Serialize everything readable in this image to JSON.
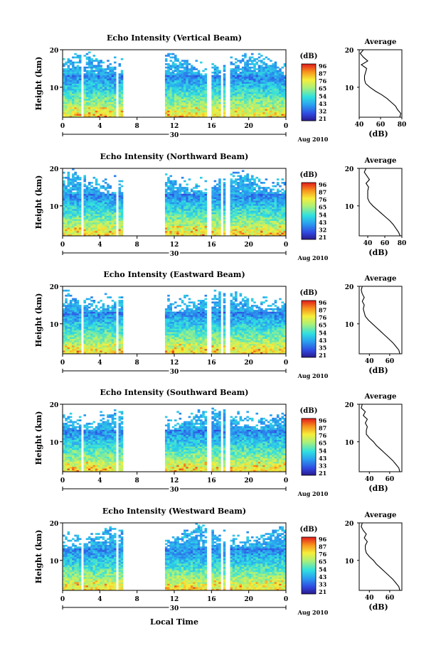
{
  "figure": {
    "x_axis_title": "Local Time",
    "date_label": "30",
    "date_suffix": "Aug 2010"
  },
  "chart_data": [
    {
      "type": "heatmap",
      "title": "Echo Intensity (Vertical Beam)",
      "ylabel": "Height (km)",
      "xlim": [
        0,
        24
      ],
      "ylim": [
        2,
        20
      ],
      "x_ticks": [
        "0",
        "4",
        "8",
        "12",
        "16",
        "20",
        "0"
      ],
      "y_ticks": [
        "20",
        "10"
      ],
      "colorbar": {
        "label": "(dB)",
        "ticks": [
          "96",
          "87",
          "76",
          "65",
          "54",
          "43",
          "32",
          "21"
        ],
        "range": [
          21,
          96
        ]
      },
      "data_gaps_hours": [
        [
          1.9,
          2.2
        ],
        [
          5.7,
          6.1
        ],
        [
          6.4,
          10.9
        ],
        [
          15.6,
          16.1
        ],
        [
          17.0,
          17.3
        ],
        [
          17.6,
          17.9
        ]
      ],
      "average_profile": {
        "title": "Average",
        "xlabel": "(dB)",
        "x_ticks": [
          "40",
          "60",
          "80"
        ],
        "xlim": [
          40,
          80
        ],
        "height_km": [
          2,
          3,
          4,
          5,
          6,
          7,
          8,
          9,
          10,
          11,
          12,
          13,
          14,
          15,
          16,
          17,
          18,
          19,
          20
        ],
        "db": [
          78,
          79,
          76,
          74,
          70,
          66,
          61,
          55,
          50,
          46,
          45,
          45,
          46,
          47,
          42,
          48,
          44,
          41,
          44
        ]
      }
    },
    {
      "type": "heatmap",
      "title": "Echo Intensity (Northward Beam)",
      "ylabel": "Height (km)",
      "xlim": [
        0,
        24
      ],
      "ylim": [
        2,
        20
      ],
      "x_ticks": [
        "0",
        "4",
        "8",
        "12",
        "16",
        "20",
        "0"
      ],
      "y_ticks": [
        "20",
        "10"
      ],
      "colorbar": {
        "label": "(dB)",
        "ticks": [
          "96",
          "87",
          "76",
          "65",
          "54",
          "43",
          "32",
          "21"
        ],
        "range": [
          21,
          96
        ]
      },
      "data_gaps_hours": [
        [
          1.9,
          2.2
        ],
        [
          5.7,
          6.1
        ],
        [
          6.4,
          10.9
        ],
        [
          15.6,
          16.1
        ],
        [
          17.0,
          17.3
        ],
        [
          17.6,
          17.9
        ]
      ],
      "average_profile": {
        "title": "Average",
        "xlabel": "(dB)",
        "x_ticks": [
          "40",
          "60",
          "80"
        ],
        "xlim": [
          30,
          80
        ],
        "height_km": [
          2,
          3,
          4,
          5,
          6,
          7,
          8,
          9,
          10,
          11,
          12,
          13,
          14,
          15,
          16,
          17,
          18,
          19,
          20
        ],
        "db": [
          78,
          76,
          73,
          70,
          66,
          61,
          56,
          51,
          46,
          42,
          40,
          40,
          40,
          41,
          38,
          42,
          39,
          36,
          38
        ]
      }
    },
    {
      "type": "heatmap",
      "title": "Echo Intensity (Eastward Beam)",
      "ylabel": "Height (km)",
      "xlim": [
        0,
        24
      ],
      "ylim": [
        2,
        20
      ],
      "x_ticks": [
        "0",
        "4",
        "8",
        "12",
        "16",
        "20",
        "0"
      ],
      "y_ticks": [
        "20",
        "10"
      ],
      "colorbar": {
        "label": "(dB)",
        "ticks": [
          "96",
          "87",
          "76",
          "65",
          "54",
          "43",
          "35",
          "21"
        ],
        "range": [
          21,
          96
        ]
      },
      "data_gaps_hours": [
        [
          1.9,
          2.2
        ],
        [
          5.7,
          6.1
        ],
        [
          6.4,
          10.9
        ],
        [
          15.6,
          16.1
        ],
        [
          17.0,
          17.3
        ],
        [
          17.6,
          17.9
        ]
      ],
      "average_profile": {
        "title": "Average",
        "xlabel": "(dB)",
        "x_ticks": [
          "40",
          "60"
        ],
        "xlim": [
          30,
          72
        ],
        "height_km": [
          2,
          3,
          4,
          5,
          6,
          7,
          8,
          9,
          10,
          11,
          12,
          13,
          14,
          15,
          16,
          17,
          18,
          19,
          20
        ],
        "db": [
          70,
          69,
          66,
          63,
          59,
          55,
          51,
          47,
          43,
          39,
          36,
          35,
          34,
          35,
          33,
          35,
          33,
          32,
          33
        ]
      }
    },
    {
      "type": "heatmap",
      "title": "Echo Intensity (Southward Beam)",
      "ylabel": "Height (km)",
      "xlim": [
        0,
        24
      ],
      "ylim": [
        2,
        20
      ],
      "x_ticks": [
        "0",
        "4",
        "8",
        "12",
        "16",
        "20",
        "0"
      ],
      "y_ticks": [
        "20",
        "10"
      ],
      "colorbar": {
        "label": "(dB)",
        "ticks": [
          "96",
          "87",
          "76",
          "65",
          "54",
          "43",
          "33",
          "21"
        ],
        "range": [
          21,
          96
        ]
      },
      "data_gaps_hours": [
        [
          1.9,
          2.2
        ],
        [
          5.7,
          6.1
        ],
        [
          6.4,
          10.9
        ],
        [
          15.6,
          16.1
        ],
        [
          17.0,
          17.3
        ],
        [
          17.6,
          17.9
        ]
      ],
      "average_profile": {
        "title": "Average",
        "xlabel": "(dB)",
        "x_ticks": [
          "40",
          "60"
        ],
        "xlim": [
          30,
          72
        ],
        "height_km": [
          2,
          3,
          4,
          5,
          6,
          7,
          8,
          9,
          10,
          11,
          12,
          13,
          14,
          15,
          16,
          17,
          18,
          19,
          20
        ],
        "db": [
          70,
          69,
          66,
          63,
          59,
          55,
          51,
          47,
          44,
          40,
          37,
          37,
          38,
          36,
          38,
          34,
          36,
          32,
          33
        ]
      }
    },
    {
      "type": "heatmap",
      "title": "Echo Intensity (Westward Beam)",
      "ylabel": "Height (km)",
      "xlim": [
        0,
        24
      ],
      "ylim": [
        2,
        20
      ],
      "x_ticks": [
        "0",
        "4",
        "8",
        "12",
        "16",
        "20",
        "0"
      ],
      "y_ticks": [
        "20",
        "10"
      ],
      "colorbar": {
        "label": "(dB)",
        "ticks": [
          "96",
          "87",
          "76",
          "65",
          "54",
          "43",
          "33",
          "21"
        ],
        "range": [
          21,
          96
        ]
      },
      "data_gaps_hours": [
        [
          1.9,
          2.2
        ],
        [
          5.7,
          6.1
        ],
        [
          6.4,
          10.9
        ],
        [
          15.6,
          16.1
        ],
        [
          17.0,
          17.3
        ],
        [
          17.6,
          17.9
        ]
      ],
      "average_profile": {
        "title": "Average",
        "xlabel": "(dB)",
        "x_ticks": [
          "40",
          "60"
        ],
        "xlim": [
          30,
          72
        ],
        "height_km": [
          2,
          3,
          4,
          5,
          6,
          7,
          8,
          9,
          10,
          11,
          12,
          13,
          14,
          15,
          16,
          17,
          18,
          19,
          20
        ],
        "db": [
          70,
          69,
          66,
          63,
          59,
          55,
          51,
          47,
          44,
          40,
          37,
          36,
          36,
          38,
          35,
          37,
          34,
          32,
          33
        ]
      }
    }
  ]
}
